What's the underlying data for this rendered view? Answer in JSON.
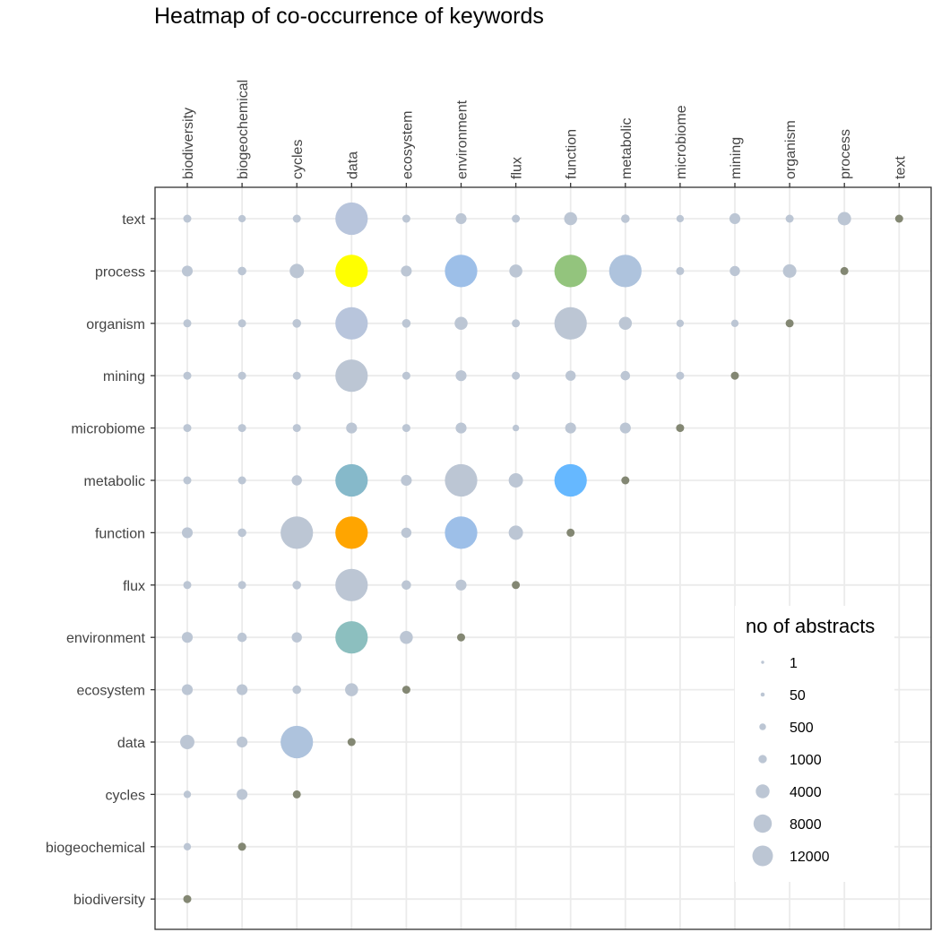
{
  "chart_data": {
    "type": "scatter",
    "title": "Heatmap of co-occurrence of keywords",
    "xlabel": "",
    "ylabel": "",
    "x_categories": [
      "biodiversity",
      "biogeochemical",
      "cycles",
      "data",
      "ecosystem",
      "environment",
      "flux",
      "function",
      "metabolic",
      "microbiome",
      "mining",
      "organism",
      "process",
      "text"
    ],
    "y_categories": [
      "biodiversity",
      "biogeochemical",
      "cycles",
      "data",
      "ecosystem",
      "environment",
      "flux",
      "function",
      "metabolic",
      "microbiome",
      "mining",
      "organism",
      "process",
      "text"
    ],
    "x_axis_position": "top",
    "grid": true,
    "legend": {
      "title": "no of abstracts",
      "position": "right",
      "breaks": [
        1,
        50,
        500,
        1000,
        4000,
        8000,
        12000
      ]
    },
    "colors": {
      "default_point": "#bcc6d4",
      "diagonal_point": "#838773",
      "highlight_yellow": "#ffff00",
      "highlight_orange": "#ffa500",
      "highlight_green": "#93c47d",
      "highlight_blue": "#66b8ff",
      "highlight_lightblue": "#9dbfe8",
      "highlight_teal": "#86b9ca",
      "highlight_teal2": "#8cbfbf",
      "highlight_steel": "#aec3dd"
    },
    "points": [
      {
        "x": "biodiversity",
        "y": "biodiversity",
        "value": 150,
        "color": "#838773"
      },
      {
        "x": "biodiversity",
        "y": "biogeochemical",
        "value": 100,
        "color": "#bcc6d4"
      },
      {
        "x": "biogeochemical",
        "y": "biogeochemical",
        "value": 150,
        "color": "#838773"
      },
      {
        "x": "biodiversity",
        "y": "cycles",
        "value": 100,
        "color": "#bcc6d4"
      },
      {
        "x": "biogeochemical",
        "y": "cycles",
        "value": 500,
        "color": "#bcc6d4"
      },
      {
        "x": "cycles",
        "y": "cycles",
        "value": 150,
        "color": "#838773"
      },
      {
        "x": "biodiversity",
        "y": "data",
        "value": 1200,
        "color": "#bcc6d4"
      },
      {
        "x": "biogeochemical",
        "y": "data",
        "value": 500,
        "color": "#bcc6d4"
      },
      {
        "x": "cycles",
        "y": "data",
        "value": 10000,
        "color": "#aec3dd"
      },
      {
        "x": "data",
        "y": "data",
        "value": 150,
        "color": "#838773"
      },
      {
        "x": "biodiversity",
        "y": "ecosystem",
        "value": 500,
        "color": "#bcc6d4"
      },
      {
        "x": "biogeochemical",
        "y": "ecosystem",
        "value": 500,
        "color": "#bcc6d4"
      },
      {
        "x": "cycles",
        "y": "ecosystem",
        "value": 200,
        "color": "#bcc6d4"
      },
      {
        "x": "data",
        "y": "ecosystem",
        "value": 900,
        "color": "#bcc6d4"
      },
      {
        "x": "ecosystem",
        "y": "ecosystem",
        "value": 150,
        "color": "#838773"
      },
      {
        "x": "biodiversity",
        "y": "environment",
        "value": 500,
        "color": "#bcc6d4"
      },
      {
        "x": "biogeochemical",
        "y": "environment",
        "value": 300,
        "color": "#bcc6d4"
      },
      {
        "x": "cycles",
        "y": "environment",
        "value": 400,
        "color": "#bcc6d4"
      },
      {
        "x": "data",
        "y": "environment",
        "value": 10000,
        "color": "#8cbfbf"
      },
      {
        "x": "ecosystem",
        "y": "environment",
        "value": 900,
        "color": "#bcc6d4"
      },
      {
        "x": "environment",
        "y": "environment",
        "value": 150,
        "color": "#838773"
      },
      {
        "x": "biodiversity",
        "y": "flux",
        "value": 150,
        "color": "#bcc6d4"
      },
      {
        "x": "biogeochemical",
        "y": "flux",
        "value": 150,
        "color": "#bcc6d4"
      },
      {
        "x": "cycles",
        "y": "flux",
        "value": 200,
        "color": "#bcc6d4"
      },
      {
        "x": "data",
        "y": "flux",
        "value": 10000,
        "color": "#bcc6d4"
      },
      {
        "x": "ecosystem",
        "y": "flux",
        "value": 300,
        "color": "#bcc6d4"
      },
      {
        "x": "environment",
        "y": "flux",
        "value": 500,
        "color": "#bcc6d4"
      },
      {
        "x": "flux",
        "y": "flux",
        "value": 150,
        "color": "#838773"
      },
      {
        "x": "biodiversity",
        "y": "function",
        "value": 500,
        "color": "#bcc6d4"
      },
      {
        "x": "biogeochemical",
        "y": "function",
        "value": 200,
        "color": "#bcc6d4"
      },
      {
        "x": "cycles",
        "y": "function",
        "value": 10000,
        "color": "#bcc6d4"
      },
      {
        "x": "data",
        "y": "function",
        "value": 10000,
        "color": "#ffa500"
      },
      {
        "x": "ecosystem",
        "y": "function",
        "value": 400,
        "color": "#bcc6d4"
      },
      {
        "x": "environment",
        "y": "function",
        "value": 10000,
        "color": "#9dbfe8"
      },
      {
        "x": "flux",
        "y": "function",
        "value": 1200,
        "color": "#bcc6d4"
      },
      {
        "x": "function",
        "y": "function",
        "value": 150,
        "color": "#838773"
      },
      {
        "x": "biodiversity",
        "y": "metabolic",
        "value": 150,
        "color": "#bcc6d4"
      },
      {
        "x": "biogeochemical",
        "y": "metabolic",
        "value": 150,
        "color": "#bcc6d4"
      },
      {
        "x": "cycles",
        "y": "metabolic",
        "value": 400,
        "color": "#bcc6d4"
      },
      {
        "x": "data",
        "y": "metabolic",
        "value": 10000,
        "color": "#86b9ca"
      },
      {
        "x": "ecosystem",
        "y": "metabolic",
        "value": 500,
        "color": "#bcc6d4"
      },
      {
        "x": "environment",
        "y": "metabolic",
        "value": 10000,
        "color": "#bcc6d4"
      },
      {
        "x": "flux",
        "y": "metabolic",
        "value": 1200,
        "color": "#bcc6d4"
      },
      {
        "x": "function",
        "y": "metabolic",
        "value": 10000,
        "color": "#66b8ff"
      },
      {
        "x": "metabolic",
        "y": "metabolic",
        "value": 150,
        "color": "#838773"
      },
      {
        "x": "biodiversity",
        "y": "microbiome",
        "value": 150,
        "color": "#bcc6d4"
      },
      {
        "x": "biogeochemical",
        "y": "microbiome",
        "value": 150,
        "color": "#bcc6d4"
      },
      {
        "x": "cycles",
        "y": "microbiome",
        "value": 150,
        "color": "#bcc6d4"
      },
      {
        "x": "data",
        "y": "microbiome",
        "value": 500,
        "color": "#bcc6d4"
      },
      {
        "x": "ecosystem",
        "y": "microbiome",
        "value": 150,
        "color": "#bcc6d4"
      },
      {
        "x": "environment",
        "y": "microbiome",
        "value": 500,
        "color": "#bcc6d4"
      },
      {
        "x": "flux",
        "y": "microbiome",
        "value": 50,
        "color": "#bcc6d4"
      },
      {
        "x": "function",
        "y": "microbiome",
        "value": 500,
        "color": "#bcc6d4"
      },
      {
        "x": "metabolic",
        "y": "microbiome",
        "value": 500,
        "color": "#bcc6d4"
      },
      {
        "x": "microbiome",
        "y": "microbiome",
        "value": 150,
        "color": "#838773"
      },
      {
        "x": "biodiversity",
        "y": "mining",
        "value": 150,
        "color": "#bcc6d4"
      },
      {
        "x": "biogeochemical",
        "y": "mining",
        "value": 150,
        "color": "#bcc6d4"
      },
      {
        "x": "cycles",
        "y": "mining",
        "value": 150,
        "color": "#bcc6d4"
      },
      {
        "x": "data",
        "y": "mining",
        "value": 10000,
        "color": "#bcc6d4"
      },
      {
        "x": "ecosystem",
        "y": "mining",
        "value": 150,
        "color": "#bcc6d4"
      },
      {
        "x": "environment",
        "y": "mining",
        "value": 500,
        "color": "#bcc6d4"
      },
      {
        "x": "flux",
        "y": "mining",
        "value": 150,
        "color": "#bcc6d4"
      },
      {
        "x": "function",
        "y": "mining",
        "value": 400,
        "color": "#bcc6d4"
      },
      {
        "x": "metabolic",
        "y": "mining",
        "value": 300,
        "color": "#bcc6d4"
      },
      {
        "x": "microbiome",
        "y": "mining",
        "value": 150,
        "color": "#bcc6d4"
      },
      {
        "x": "mining",
        "y": "mining",
        "value": 150,
        "color": "#838773"
      },
      {
        "x": "biodiversity",
        "y": "organism",
        "value": 150,
        "color": "#bcc6d4"
      },
      {
        "x": "biogeochemical",
        "y": "organism",
        "value": 150,
        "color": "#bcc6d4"
      },
      {
        "x": "cycles",
        "y": "organism",
        "value": 200,
        "color": "#bcc6d4"
      },
      {
        "x": "data",
        "y": "organism",
        "value": 10000,
        "color": "#b8c5dc"
      },
      {
        "x": "ecosystem",
        "y": "organism",
        "value": 200,
        "color": "#bcc6d4"
      },
      {
        "x": "environment",
        "y": "organism",
        "value": 900,
        "color": "#bcc6d4"
      },
      {
        "x": "flux",
        "y": "organism",
        "value": 150,
        "color": "#bcc6d4"
      },
      {
        "x": "function",
        "y": "organism",
        "value": 10000,
        "color": "#bcc6d4"
      },
      {
        "x": "metabolic",
        "y": "organism",
        "value": 900,
        "color": "#bcc6d4"
      },
      {
        "x": "microbiome",
        "y": "organism",
        "value": 100,
        "color": "#bcc6d4"
      },
      {
        "x": "mining",
        "y": "organism",
        "value": 100,
        "color": "#bcc6d4"
      },
      {
        "x": "organism",
        "y": "organism",
        "value": 150,
        "color": "#838773"
      },
      {
        "x": "biodiversity",
        "y": "process",
        "value": 500,
        "color": "#bcc6d4"
      },
      {
        "x": "biogeochemical",
        "y": "process",
        "value": 200,
        "color": "#bcc6d4"
      },
      {
        "x": "cycles",
        "y": "process",
        "value": 1200,
        "color": "#bcc6d4"
      },
      {
        "x": "data",
        "y": "process",
        "value": 10000,
        "color": "#ffff00"
      },
      {
        "x": "ecosystem",
        "y": "process",
        "value": 500,
        "color": "#bcc6d4"
      },
      {
        "x": "environment",
        "y": "process",
        "value": 10000,
        "color": "#9dbfe8"
      },
      {
        "x": "flux",
        "y": "process",
        "value": 900,
        "color": "#bcc6d4"
      },
      {
        "x": "function",
        "y": "process",
        "value": 10000,
        "color": "#93c47d"
      },
      {
        "x": "metabolic",
        "y": "process",
        "value": 10000,
        "color": "#aec3dd"
      },
      {
        "x": "microbiome",
        "y": "process",
        "value": 150,
        "color": "#bcc6d4"
      },
      {
        "x": "mining",
        "y": "process",
        "value": 400,
        "color": "#bcc6d4"
      },
      {
        "x": "organism",
        "y": "process",
        "value": 1000,
        "color": "#bcc6d4"
      },
      {
        "x": "process",
        "y": "process",
        "value": 150,
        "color": "#838773"
      },
      {
        "x": "biodiversity",
        "y": "text",
        "value": 150,
        "color": "#bcc6d4"
      },
      {
        "x": "biogeochemical",
        "y": "text",
        "value": 100,
        "color": "#bcc6d4"
      },
      {
        "x": "cycles",
        "y": "text",
        "value": 150,
        "color": "#bcc6d4"
      },
      {
        "x": "data",
        "y": "text",
        "value": 10000,
        "color": "#b8c5dc"
      },
      {
        "x": "ecosystem",
        "y": "text",
        "value": 150,
        "color": "#bcc6d4"
      },
      {
        "x": "environment",
        "y": "text",
        "value": 500,
        "color": "#bcc6d4"
      },
      {
        "x": "flux",
        "y": "text",
        "value": 150,
        "color": "#bcc6d4"
      },
      {
        "x": "function",
        "y": "text",
        "value": 900,
        "color": "#bcc6d4"
      },
      {
        "x": "metabolic",
        "y": "text",
        "value": 200,
        "color": "#bcc6d4"
      },
      {
        "x": "microbiome",
        "y": "text",
        "value": 100,
        "color": "#bcc6d4"
      },
      {
        "x": "mining",
        "y": "text",
        "value": 500,
        "color": "#bcc6d4"
      },
      {
        "x": "organism",
        "y": "text",
        "value": 150,
        "color": "#bcc6d4"
      },
      {
        "x": "process",
        "y": "text",
        "value": 1000,
        "color": "#bcc6d4"
      },
      {
        "x": "text",
        "y": "text",
        "value": 150,
        "color": "#838773"
      }
    ]
  }
}
